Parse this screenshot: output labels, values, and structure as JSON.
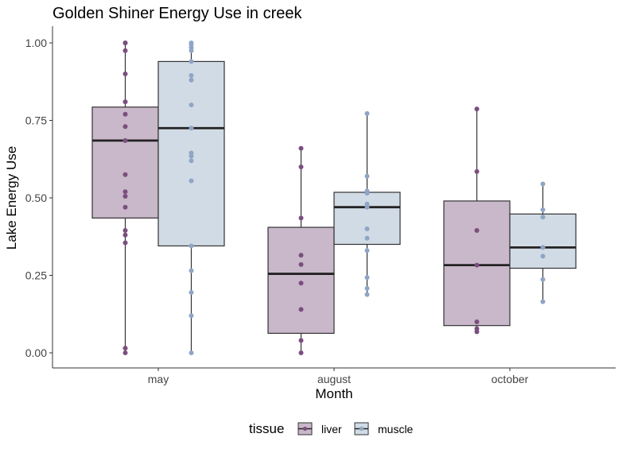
{
  "chart_data": {
    "type": "boxplot",
    "title": "Golden Shiner Energy Use in creek",
    "xlabel": "Month",
    "ylabel": "Lake Energy Use",
    "categories": [
      "may",
      "august",
      "october"
    ],
    "ylim": [
      -0.05,
      1.05
    ],
    "yticks": [
      "0.00",
      "0.25",
      "0.50",
      "0.75",
      "1.00"
    ],
    "grid": false,
    "legend": {
      "title": "tissue",
      "position": "bottom",
      "entries": [
        "liver",
        "muscle"
      ]
    },
    "series": [
      {
        "name": "liver",
        "fill": "#c9b7ca",
        "point_color": "#7a4f7e",
        "boxes": [
          {
            "category": "may",
            "min": 0.0,
            "q1": 0.435,
            "median": 0.685,
            "q3": 0.793,
            "max": 1.0,
            "points": [
              1.0,
              1.0,
              0.975,
              0.9,
              0.81,
              0.77,
              0.73,
              0.685,
              0.575,
              0.52,
              0.505,
              0.47,
              0.395,
              0.38,
              0.355,
              0.015,
              0.0
            ]
          },
          {
            "category": "august",
            "min": 0.0,
            "q1": 0.063,
            "median": 0.255,
            "q3": 0.405,
            "max": 0.66,
            "points": [
              0.66,
              0.6,
              0.435,
              0.315,
              0.285,
              0.225,
              0.14,
              0.04,
              0.0
            ]
          },
          {
            "category": "october",
            "min": 0.068,
            "q1": 0.088,
            "median": 0.283,
            "q3": 0.49,
            "max": 0.787,
            "points": [
              0.787,
              0.585,
              0.395,
              0.283,
              0.1,
              0.078,
              0.068
            ]
          }
        ]
      },
      {
        "name": "muscle",
        "fill": "#d1dbe5",
        "point_color": "#8fa5c6",
        "boxes": [
          {
            "category": "may",
            "min": 0.0,
            "q1": 0.345,
            "median": 0.725,
            "q3": 0.94,
            "max": 1.0,
            "points": [
              1.0,
              0.995,
              0.985,
              0.975,
              0.94,
              0.895,
              0.88,
              0.8,
              0.725,
              0.645,
              0.635,
              0.62,
              0.555,
              0.345,
              0.265,
              0.195,
              0.12,
              0.0
            ]
          },
          {
            "category": "august",
            "min": 0.188,
            "q1": 0.35,
            "median": 0.47,
            "q3": 0.518,
            "max": 0.772,
            "points": [
              0.772,
              0.57,
              0.522,
              0.515,
              0.48,
              0.47,
              0.4,
              0.37,
              0.33,
              0.243,
              0.208,
              0.188
            ]
          },
          {
            "category": "october",
            "min": 0.165,
            "q1": 0.273,
            "median": 0.34,
            "q3": 0.448,
            "max": 0.545,
            "points": [
              0.545,
              0.462,
              0.438,
              0.34,
              0.312,
              0.237,
              0.165
            ]
          }
        ]
      }
    ]
  }
}
